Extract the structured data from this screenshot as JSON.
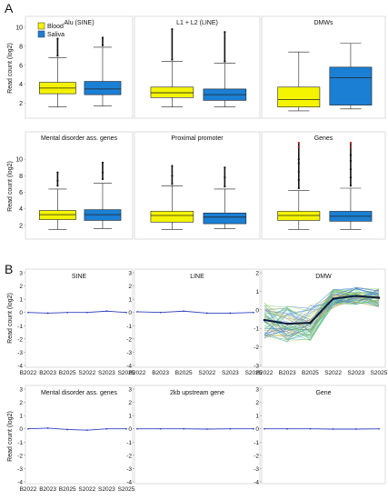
{
  "figure": {
    "panel_labels": [
      "A",
      "B"
    ],
    "legend": [
      {
        "label": "Blood",
        "color": "#f4f400"
      },
      {
        "label": "Saliva",
        "color": "#1b7fd4"
      }
    ],
    "ylabel_a": "Read count (log2)",
    "ylabel_b": "Read count (log2)"
  },
  "chart_data": [
    {
      "type": "box",
      "panel": "A",
      "title": "Alu (SINE)",
      "ylim": [
        1,
        10
      ],
      "yticks": [
        2,
        4,
        6,
        8,
        10
      ],
      "groups": [
        {
          "name": "Blood",
          "min": 1.6,
          "q1": 3.0,
          "median": 3.6,
          "q3": 4.2,
          "max": 6.8,
          "outliers_top": [
            7.0,
            8.8
          ]
        },
        {
          "name": "Saliva",
          "min": 1.7,
          "q1": 2.9,
          "median": 3.5,
          "q3": 4.3,
          "max": 7.9,
          "outliers_top": [
            8.1,
            8.9
          ]
        }
      ]
    },
    {
      "type": "box",
      "panel": "A",
      "title": "L1 + L2 (LINE)",
      "ylim": [
        1,
        10
      ],
      "yticks": [],
      "groups": [
        {
          "name": "Blood",
          "min": 1.6,
          "q1": 2.6,
          "median": 3.1,
          "q3": 3.7,
          "max": 6.4,
          "outliers_top": [
            6.6,
            9.8
          ]
        },
        {
          "name": "Saliva",
          "min": 1.6,
          "q1": 2.3,
          "median": 2.9,
          "q3": 3.5,
          "max": 6.2,
          "outliers_top": [
            6.4,
            9.5
          ]
        }
      ]
    },
    {
      "type": "box",
      "panel": "A",
      "title": "DMWs",
      "ylim": [
        1,
        10
      ],
      "yticks": [],
      "groups": [
        {
          "name": "Blood",
          "min": 1.2,
          "q1": 1.6,
          "median": 2.4,
          "q3": 3.7,
          "max": 7.4,
          "outliers_top": []
        },
        {
          "name": "Saliva",
          "min": 1.4,
          "q1": 1.8,
          "median": 4.7,
          "q3": 5.8,
          "max": 8.3,
          "outliers_top": []
        }
      ]
    },
    {
      "type": "box",
      "panel": "A",
      "title": "Mental disorder ass. genes",
      "ylim": [
        1,
        12
      ],
      "yticks": [
        2,
        4,
        6,
        8,
        10
      ],
      "groups": [
        {
          "name": "Blood",
          "min": 1.5,
          "q1": 2.7,
          "median": 3.3,
          "q3": 3.8,
          "max": 6.4,
          "outliers_top": [
            6.8,
            7.4,
            8.4
          ]
        },
        {
          "name": "Saliva",
          "min": 1.6,
          "q1": 2.6,
          "median": 3.3,
          "q3": 3.9,
          "max": 7.1,
          "outliers_top": [
            7.6,
            8.4,
            9.6
          ]
        }
      ]
    },
    {
      "type": "box",
      "panel": "A",
      "title": "Proximal promoter",
      "ylim": [
        1,
        12
      ],
      "yticks": [],
      "groups": [
        {
          "name": "Blood",
          "min": 1.5,
          "q1": 2.4,
          "median": 3.2,
          "q3": 3.7,
          "max": 6.8,
          "outliers_top": [
            7.0,
            8.0,
            9.2
          ]
        },
        {
          "name": "Saliva",
          "min": 1.6,
          "q1": 2.2,
          "median": 3.0,
          "q3": 3.5,
          "max": 6.4,
          "outliers_top": [
            6.7,
            7.8,
            9.0
          ]
        }
      ]
    },
    {
      "type": "box",
      "panel": "A",
      "title": "Genes",
      "ylim": [
        1,
        12
      ],
      "yticks": [],
      "groups": [
        {
          "name": "Blood",
          "min": 1.5,
          "q1": 2.6,
          "median": 3.2,
          "q3": 3.7,
          "max": 6.2,
          "outliers_top": [
            6.5,
            7.5,
            8.5,
            9.5,
            10.0,
            11.5,
            12.0
          ]
        },
        {
          "name": "Saliva",
          "min": 1.5,
          "q1": 2.5,
          "median": 3.1,
          "q3": 3.7,
          "max": 6.5,
          "outliers_top": [
            6.8,
            7.8,
            8.8,
            9.8,
            10.5,
            11.5,
            12.0
          ]
        }
      ]
    },
    {
      "type": "line",
      "panel": "B",
      "title": "SINE",
      "categories": [
        "B2022",
        "B2023",
        "B2025",
        "S2022",
        "S2023",
        "S2025"
      ],
      "ylim": [
        -4,
        3
      ],
      "yticks": [
        3,
        2,
        1,
        0,
        -1,
        -2,
        -3,
        -4
      ],
      "series": [
        {
          "values": [
            0.0,
            -0.05,
            0.0,
            0.0,
            0.1,
            0.0
          ]
        }
      ]
    },
    {
      "type": "line",
      "panel": "B",
      "title": "LINE",
      "categories": [
        "B2022",
        "B2023",
        "B2025",
        "S2022",
        "S2023",
        "S2025"
      ],
      "ylim": [
        -4,
        3
      ],
      "yticks": [
        3,
        2,
        1,
        0,
        -1,
        -2,
        -3,
        -4
      ],
      "series": [
        {
          "values": [
            0.05,
            0.0,
            0.1,
            -0.05,
            -0.05,
            0.0
          ]
        }
      ]
    },
    {
      "type": "line",
      "panel": "B",
      "title": "DMW",
      "categories": [
        "B2022",
        "B2023",
        "B2025",
        "S2022",
        "S2023",
        "S2025"
      ],
      "ylim": [
        -3,
        2
      ],
      "yticks": [
        2,
        1,
        0,
        -1,
        -2,
        -3
      ],
      "series": [
        {
          "values": [
            -0.55,
            -0.75,
            -0.7,
            0.6,
            0.75,
            0.65
          ]
        }
      ]
    },
    {
      "type": "line",
      "panel": "B",
      "title": "Mental disorder ass. genes",
      "categories": [
        "B2022",
        "B2023",
        "B2025",
        "S2022",
        "S2023",
        "S2025"
      ],
      "ylim": [
        -4,
        3
      ],
      "yticks": [
        3,
        2,
        1,
        0,
        -1,
        -2,
        -3,
        -4
      ],
      "series": [
        {
          "values": [
            0.0,
            0.05,
            -0.05,
            -0.1,
            0.0,
            0.0
          ]
        }
      ]
    },
    {
      "type": "line",
      "panel": "B",
      "title": "2kb upstream gene",
      "categories": [
        "B2022",
        "B2023",
        "B2025",
        "S2022",
        "S2023",
        "S2025"
      ],
      "ylim": [
        -4,
        3
      ],
      "yticks": [
        3,
        2,
        1,
        0,
        -1,
        -2,
        -3,
        -4
      ],
      "series": [
        {
          "values": [
            0.0,
            0.0,
            0.0,
            -0.02,
            0.0,
            0.0
          ]
        }
      ]
    },
    {
      "type": "line",
      "panel": "B",
      "title": "Gene",
      "categories": [
        "B2022",
        "B2023",
        "B2025",
        "S2022",
        "S2023",
        "S2025"
      ],
      "ylim": [
        -4,
        3
      ],
      "yticks": [
        3,
        2,
        1,
        0,
        -1,
        -2,
        -3,
        -4
      ],
      "series": [
        {
          "values": [
            0.0,
            0.0,
            0.0,
            -0.02,
            -0.02,
            0.0
          ]
        }
      ]
    }
  ]
}
